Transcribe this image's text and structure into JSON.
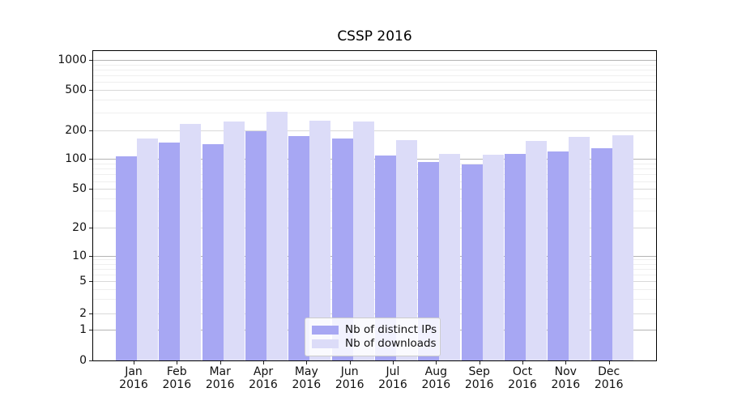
{
  "figure": {
    "title": "CSSP 2016"
  },
  "chart_data": {
    "type": "bar",
    "title": "CSSP 2016",
    "yscale": "symlog",
    "ylim": [
      0,
      1100
    ],
    "y_ticks": [
      0,
      1,
      2,
      5,
      10,
      20,
      50,
      100,
      200,
      500,
      1000
    ],
    "grid": "horizontal major + minor gridlines",
    "legend_position": "lower center",
    "x_tick_year": "2016",
    "categories": [
      "Jan 2016",
      "Feb 2016",
      "Mar 2016",
      "Apr 2016",
      "May 2016",
      "Jun 2016",
      "Jul 2016",
      "Aug 2016",
      "Sep 2016",
      "Oct 2016",
      "Nov 2016",
      "Dec 2016"
    ],
    "x_tick_months": [
      "Jan",
      "Feb",
      "Mar",
      "Apr",
      "May",
      "Jun",
      "Jul",
      "Aug",
      "Sep",
      "Oct",
      "Nov",
      "Dec"
    ],
    "series": [
      {
        "name": "Nb of distinct IPs",
        "color": "#a7a7f3",
        "values": [
          107,
          148,
          143,
          197,
          176,
          164,
          109,
          93,
          88,
          112,
          121,
          129
        ]
      },
      {
        "name": "Nb of downloads",
        "color": "#dcdcf8",
        "values": [
          165,
          233,
          247,
          305,
          251,
          244,
          157,
          113,
          110,
          156,
          171,
          177
        ]
      }
    ]
  }
}
